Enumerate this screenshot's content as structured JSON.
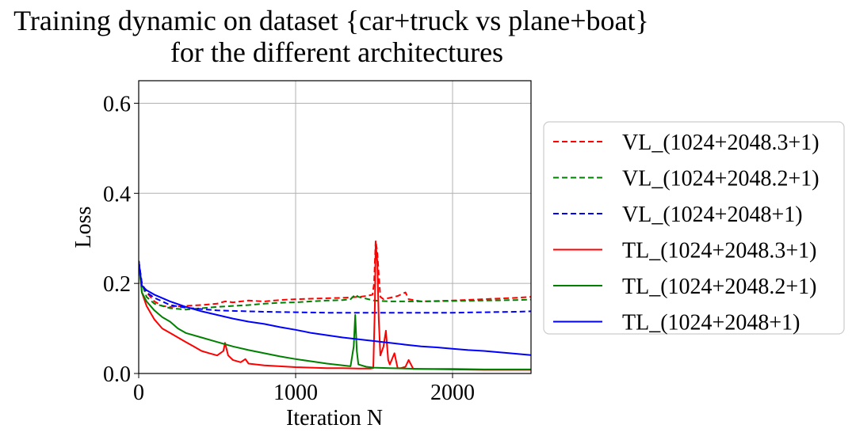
{
  "chart_data": {
    "type": "line",
    "title_lines": [
      "Training dynamic on dataset {car+truck vs plane+boat}",
      "for the different architectures"
    ],
    "xlabel": "Iteration N",
    "ylabel": "Loss",
    "xlim": [
      0,
      2500
    ],
    "ylim": [
      0,
      0.65
    ],
    "xticks": [
      0,
      1000,
      2000
    ],
    "yticks": [
      0.0,
      0.2,
      0.4,
      0.6
    ],
    "xtick_labels": [
      "0",
      "1000",
      "2000"
    ],
    "ytick_labels": [
      "0.0",
      "0.2",
      "0.4",
      "0.6"
    ],
    "grid": true,
    "legend_position": "outside-right",
    "series": [
      {
        "name": "VL_(1024+2048.3+1)",
        "color": "#ff0000",
        "style": "dashed",
        "x": [
          0,
          20,
          50,
          100,
          150,
          200,
          300,
          400,
          500,
          550,
          600,
          700,
          800,
          900,
          1000,
          1100,
          1200,
          1300,
          1400,
          1450,
          1490,
          1500,
          1510,
          1520,
          1530,
          1540,
          1560,
          1600,
          1650,
          1700,
          1720,
          1800,
          2000,
          2200,
          2400,
          2500
        ],
        "y": [
          0.25,
          0.2,
          0.18,
          0.16,
          0.15,
          0.148,
          0.15,
          0.152,
          0.155,
          0.16,
          0.158,
          0.162,
          0.16,
          0.163,
          0.165,
          0.166,
          0.167,
          0.168,
          0.17,
          0.172,
          0.175,
          0.2,
          0.295,
          0.27,
          0.22,
          0.17,
          0.165,
          0.168,
          0.172,
          0.18,
          0.165,
          0.16,
          0.162,
          0.165,
          0.168,
          0.17
        ]
      },
      {
        "name": "VL_(1024+2048.2+1)",
        "color": "#008000",
        "style": "dashed",
        "x": [
          0,
          20,
          50,
          100,
          150,
          200,
          300,
          400,
          500,
          600,
          700,
          800,
          900,
          1000,
          1100,
          1200,
          1300,
          1350,
          1380,
          1400,
          1500,
          1600,
          1700,
          1800,
          2000,
          2200,
          2400,
          2500
        ],
        "y": [
          0.25,
          0.2,
          0.17,
          0.155,
          0.15,
          0.145,
          0.142,
          0.145,
          0.148,
          0.15,
          0.152,
          0.155,
          0.157,
          0.158,
          0.16,
          0.162,
          0.163,
          0.165,
          0.175,
          0.17,
          0.162,
          0.16,
          0.16,
          0.16,
          0.161,
          0.162,
          0.163,
          0.164
        ]
      },
      {
        "name": "VL_(1024+2048+1)",
        "color": "#0000ff",
        "style": "dashed",
        "x": [
          0,
          20,
          50,
          100,
          150,
          200,
          300,
          400,
          500,
          600,
          800,
          1000,
          1200,
          1400,
          1600,
          1800,
          2000,
          2200,
          2400,
          2500
        ],
        "y": [
          0.25,
          0.2,
          0.18,
          0.168,
          0.16,
          0.152,
          0.146,
          0.143,
          0.14,
          0.139,
          0.137,
          0.136,
          0.135,
          0.135,
          0.135,
          0.135,
          0.135,
          0.136,
          0.137,
          0.138
        ]
      },
      {
        "name": "TL_(1024+2048.3+1)",
        "color": "#ff0000",
        "style": "solid",
        "x": [
          0,
          20,
          50,
          100,
          150,
          200,
          250,
          300,
          350,
          400,
          450,
          500,
          540,
          550,
          570,
          600,
          650,
          680,
          700,
          800,
          900,
          1000,
          1100,
          1200,
          1300,
          1400,
          1480,
          1495,
          1505,
          1510,
          1520,
          1530,
          1540,
          1560,
          1575,
          1590,
          1600,
          1630,
          1650,
          1670,
          1700,
          1720,
          1750,
          1800,
          2000,
          2200,
          2400,
          2500
        ],
        "y": [
          0.25,
          0.18,
          0.15,
          0.12,
          0.1,
          0.09,
          0.08,
          0.07,
          0.06,
          0.05,
          0.045,
          0.04,
          0.05,
          0.068,
          0.04,
          0.03,
          0.025,
          0.032,
          0.022,
          0.018,
          0.016,
          0.014,
          0.013,
          0.012,
          0.012,
          0.011,
          0.011,
          0.012,
          0.15,
          0.29,
          0.25,
          0.12,
          0.04,
          0.06,
          0.095,
          0.03,
          0.02,
          0.045,
          0.012,
          0.012,
          0.015,
          0.03,
          0.01,
          0.01,
          0.009,
          0.008,
          0.008,
          0.008
        ]
      },
      {
        "name": "TL_(1024+2048.2+1)",
        "color": "#008000",
        "style": "solid",
        "x": [
          0,
          20,
          50,
          100,
          150,
          200,
          250,
          300,
          400,
          500,
          600,
          700,
          800,
          900,
          1000,
          1100,
          1200,
          1300,
          1350,
          1370,
          1380,
          1390,
          1400,
          1450,
          1500,
          1600,
          1700,
          1800,
          2000,
          2200,
          2400,
          2500
        ],
        "y": [
          0.25,
          0.18,
          0.16,
          0.14,
          0.125,
          0.115,
          0.1,
          0.09,
          0.08,
          0.07,
          0.06,
          0.052,
          0.045,
          0.038,
          0.032,
          0.027,
          0.022,
          0.018,
          0.016,
          0.06,
          0.13,
          0.05,
          0.02,
          0.015,
          0.013,
          0.012,
          0.011,
          0.01,
          0.01,
          0.009,
          0.009,
          0.009
        ]
      },
      {
        "name": "TL_(1024+2048+1)",
        "color": "#0000ff",
        "style": "solid",
        "x": [
          0,
          20,
          50,
          100,
          200,
          300,
          400,
          500,
          600,
          700,
          800,
          900,
          1000,
          1100,
          1200,
          1300,
          1400,
          1500,
          1600,
          1700,
          1800,
          1900,
          2000,
          2100,
          2200,
          2300,
          2400,
          2500
        ],
        "y": [
          0.25,
          0.195,
          0.185,
          0.175,
          0.16,
          0.148,
          0.138,
          0.13,
          0.122,
          0.115,
          0.11,
          0.103,
          0.097,
          0.09,
          0.085,
          0.08,
          0.076,
          0.072,
          0.068,
          0.064,
          0.06,
          0.058,
          0.055,
          0.052,
          0.05,
          0.047,
          0.044,
          0.041
        ]
      }
    ]
  }
}
